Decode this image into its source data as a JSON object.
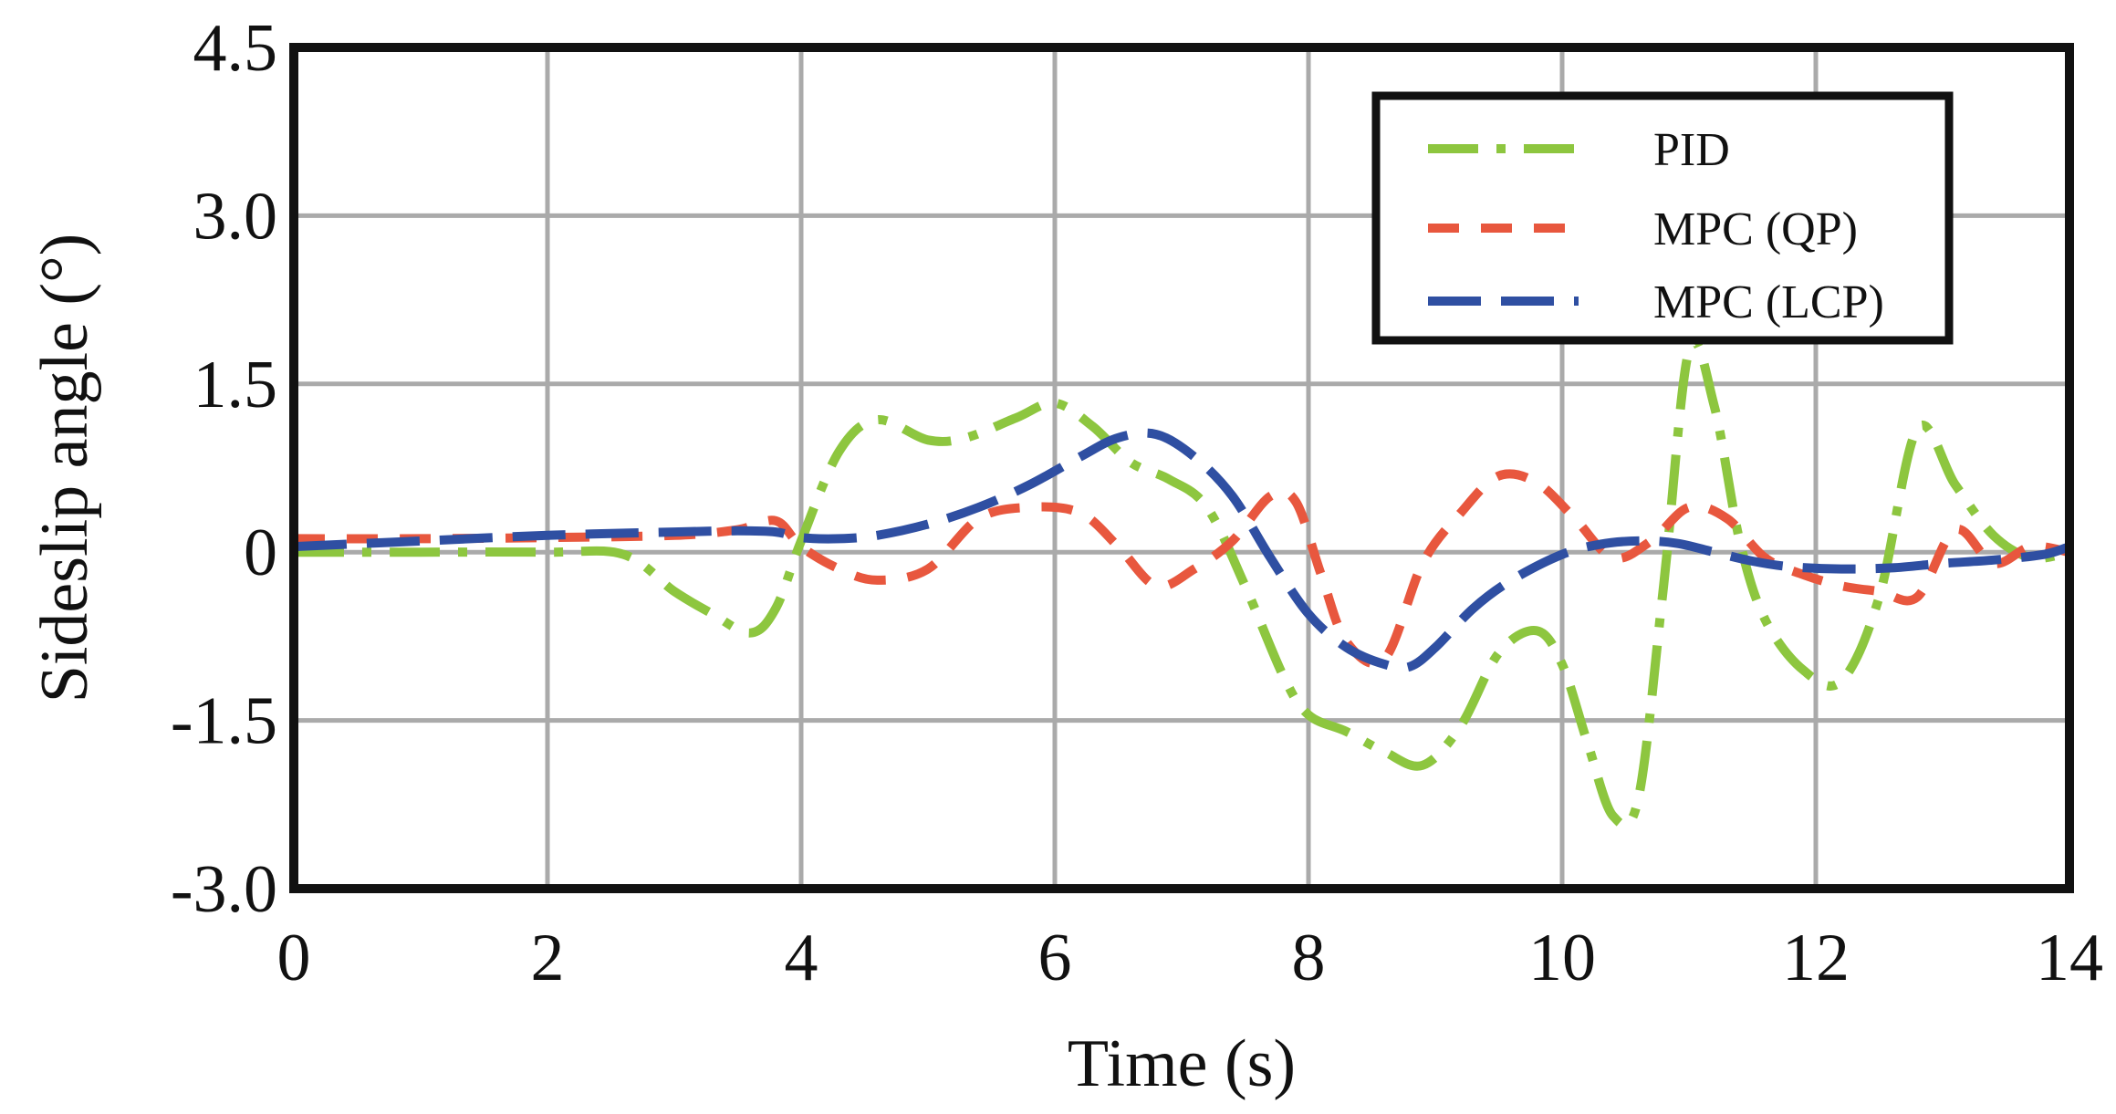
{
  "chart_data": {
    "type": "line",
    "title": "",
    "xlabel": "Time (s)",
    "ylabel": "Sideslip angle (°)",
    "xlim": [
      0,
      14
    ],
    "ylim": [
      -3.0,
      4.5
    ],
    "xticks": [
      0,
      2,
      4,
      6,
      8,
      10,
      12,
      14
    ],
    "xtick_labels": [
      "0",
      "2",
      "4",
      "6",
      "8",
      "10",
      "12",
      "14"
    ],
    "yticks": [
      -3.0,
      -1.5,
      0,
      1.5,
      3.0,
      4.5
    ],
    "ytick_labels": [
      "-3.0",
      "-1.5",
      "0",
      "1.5",
      "3.0",
      "4.5"
    ],
    "grid": true,
    "legend_position": "top-right",
    "series": [
      {
        "name": "PID",
        "color": "#8dc63f",
        "dash": "dash-dot",
        "x": [
          0,
          1,
          2,
          2.6,
          3.0,
          3.3,
          3.6,
          3.8,
          4.0,
          4.3,
          4.6,
          5.0,
          5.3,
          5.7,
          6.0,
          6.3,
          6.6,
          6.9,
          7.2,
          7.5,
          7.8,
          8.0,
          8.3,
          8.6,
          8.9,
          9.2,
          9.5,
          9.8,
          10.0,
          10.2,
          10.4,
          10.6,
          10.8,
          11.0,
          11.2,
          11.4,
          11.6,
          11.9,
          12.2,
          12.5,
          12.8,
          13.1,
          13.4,
          13.7,
          14.0
        ],
        "y": [
          0,
          0,
          0,
          -0.02,
          -0.35,
          -0.55,
          -0.72,
          -0.5,
          0.1,
          0.9,
          1.18,
          1.0,
          1.02,
          1.2,
          1.33,
          1.12,
          0.8,
          0.65,
          0.4,
          -0.3,
          -1.1,
          -1.45,
          -1.6,
          -1.78,
          -1.9,
          -1.55,
          -0.9,
          -0.7,
          -1.0,
          -1.7,
          -2.35,
          -2.2,
          -0.3,
          1.8,
          1.3,
          0.1,
          -0.6,
          -1.05,
          -1.15,
          -0.4,
          1.1,
          0.6,
          0.15,
          -0.05,
          0
        ]
      },
      {
        "name": "MPC (QP)",
        "color": "#e8573e",
        "dash": "dash",
        "x": [
          0,
          1,
          2,
          3,
          3.5,
          3.8,
          4.0,
          4.3,
          4.6,
          5.0,
          5.4,
          5.8,
          6.2,
          6.5,
          6.8,
          7.1,
          7.4,
          7.7,
          7.9,
          8.1,
          8.3,
          8.6,
          8.9,
          9.2,
          9.5,
          9.8,
          10.1,
          10.4,
          10.7,
          11.0,
          11.3,
          11.6,
          11.9,
          12.2,
          12.5,
          12.8,
          13.1,
          13.4,
          13.7,
          14.0
        ],
        "y": [
          0.12,
          0.12,
          0.13,
          0.15,
          0.2,
          0.28,
          0.05,
          -0.15,
          -0.25,
          -0.15,
          0.3,
          0.4,
          0.35,
          0.05,
          -0.3,
          -0.15,
          0.1,
          0.5,
          0.45,
          -0.2,
          -0.8,
          -0.95,
          -0.1,
          0.35,
          0.68,
          0.62,
          0.3,
          -0.05,
          0.1,
          0.4,
          0.3,
          -0.05,
          -0.2,
          -0.3,
          -0.35,
          -0.4,
          0.2,
          -0.1,
          0.05,
          0
        ]
      },
      {
        "name": "MPC (LCP)",
        "color": "#2f4fa2",
        "dash": "long-dash",
        "x": [
          0,
          1,
          2,
          3,
          3.5,
          3.8,
          4.0,
          4.3,
          4.6,
          5.0,
          5.4,
          5.8,
          6.2,
          6.5,
          6.8,
          7.1,
          7.4,
          7.7,
          8.0,
          8.3,
          8.6,
          8.8,
          9.0,
          9.3,
          9.6,
          10.0,
          10.3,
          10.6,
          10.9,
          11.2,
          11.5,
          11.8,
          12.2,
          12.6,
          13.0,
          13.4,
          13.8,
          14.0
        ],
        "y": [
          0.05,
          0.1,
          0.15,
          0.18,
          0.19,
          0.18,
          0.13,
          0.12,
          0.15,
          0.25,
          0.4,
          0.6,
          0.85,
          1.02,
          1.05,
          0.85,
          0.5,
          -0.05,
          -0.55,
          -0.85,
          -1.0,
          -1.02,
          -0.85,
          -0.5,
          -0.25,
          -0.02,
          0.07,
          0.1,
          0.08,
          0.0,
          -0.08,
          -0.13,
          -0.15,
          -0.14,
          -0.1,
          -0.07,
          -0.02,
          0.05
        ]
      }
    ]
  }
}
